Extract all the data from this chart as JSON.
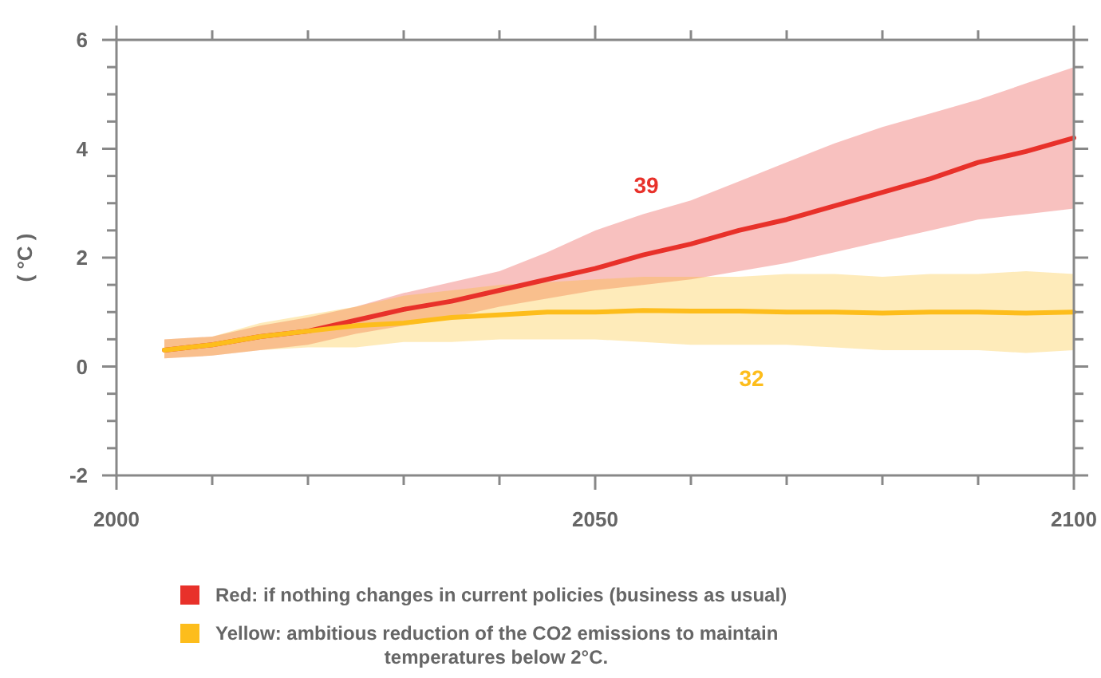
{
  "chart_data": {
    "type": "line",
    "ylabel": "( °C )",
    "x": [
      2005,
      2010,
      2015,
      2020,
      2025,
      2030,
      2035,
      2040,
      2045,
      2050,
      2055,
      2060,
      2065,
      2070,
      2075,
      2080,
      2085,
      2090,
      2095,
      2100
    ],
    "series": [
      {
        "name": "Red: if nothing changes in current policies (business as usual)",
        "color": "#e8312a",
        "values": [
          0.3,
          0.4,
          0.55,
          0.65,
          0.85,
          1.05,
          1.2,
          1.4,
          1.6,
          1.8,
          2.05,
          2.25,
          2.5,
          2.7,
          2.95,
          3.2,
          3.45,
          3.75,
          3.95,
          4.2
        ],
        "lower": [
          0.15,
          0.2,
          0.3,
          0.4,
          0.6,
          0.75,
          0.9,
          1.1,
          1.25,
          1.4,
          1.5,
          1.6,
          1.75,
          1.9,
          2.1,
          2.3,
          2.5,
          2.7,
          2.8,
          2.9
        ],
        "upper": [
          0.5,
          0.55,
          0.75,
          0.9,
          1.1,
          1.35,
          1.55,
          1.75,
          2.1,
          2.5,
          2.8,
          3.05,
          3.4,
          3.75,
          4.1,
          4.4,
          4.65,
          4.9,
          5.2,
          5.5
        ]
      },
      {
        "name": "Yellow: ambitious reduction of the CO2 emissions to maintain temperatures below 2°C.",
        "color": "#fdbd1c",
        "values": [
          0.3,
          0.4,
          0.55,
          0.65,
          0.75,
          0.8,
          0.9,
          0.95,
          1.0,
          1.0,
          1.03,
          1.02,
          1.02,
          1.0,
          1.0,
          0.98,
          1.0,
          1.0,
          0.98,
          1.0
        ],
        "lower": [
          0.15,
          0.2,
          0.3,
          0.35,
          0.35,
          0.45,
          0.45,
          0.5,
          0.5,
          0.5,
          0.45,
          0.4,
          0.4,
          0.4,
          0.35,
          0.3,
          0.3,
          0.3,
          0.25,
          0.3
        ],
        "upper": [
          0.5,
          0.55,
          0.8,
          0.95,
          1.1,
          1.3,
          1.4,
          1.5,
          1.55,
          1.6,
          1.65,
          1.65,
          1.65,
          1.7,
          1.7,
          1.65,
          1.7,
          1.7,
          1.75,
          1.7
        ]
      }
    ],
    "annotations": [
      "39",
      "32"
    ],
    "xlim": [
      2000,
      2100
    ],
    "xticks": [
      2000,
      {
        "value": 2010,
        "label": null
      },
      {
        "value": 2020,
        "label": null
      },
      {
        "value": 2030,
        "label": null
      },
      {
        "value": 2040,
        "label": null
      },
      2050,
      {
        "value": 2060,
        "label": null
      },
      {
        "value": 2070,
        "label": null
      },
      {
        "value": 2080,
        "label": null
      },
      {
        "value": 2090,
        "label": null
      },
      2100
    ],
    "ylim": [
      -2,
      6
    ],
    "yticks": [
      -2,
      {
        "value": -1.5,
        "label": null
      },
      {
        "value": -1,
        "label": null
      },
      {
        "value": -0.5,
        "label": null
      },
      0,
      {
        "value": 0.5,
        "label": null
      },
      {
        "value": 1,
        "label": null
      },
      {
        "value": 1.5,
        "label": null
      },
      2,
      {
        "value": 2.5,
        "label": null
      },
      {
        "value": 3,
        "label": null
      },
      {
        "value": 3.5,
        "label": null
      },
      4,
      {
        "value": 4.5,
        "label": null
      },
      {
        "value": 5,
        "label": null
      },
      {
        "value": 5.5,
        "label": null
      },
      6
    ],
    "legend": "bottom",
    "marker": "none",
    "line_style": "solid",
    "grid": false
  }
}
